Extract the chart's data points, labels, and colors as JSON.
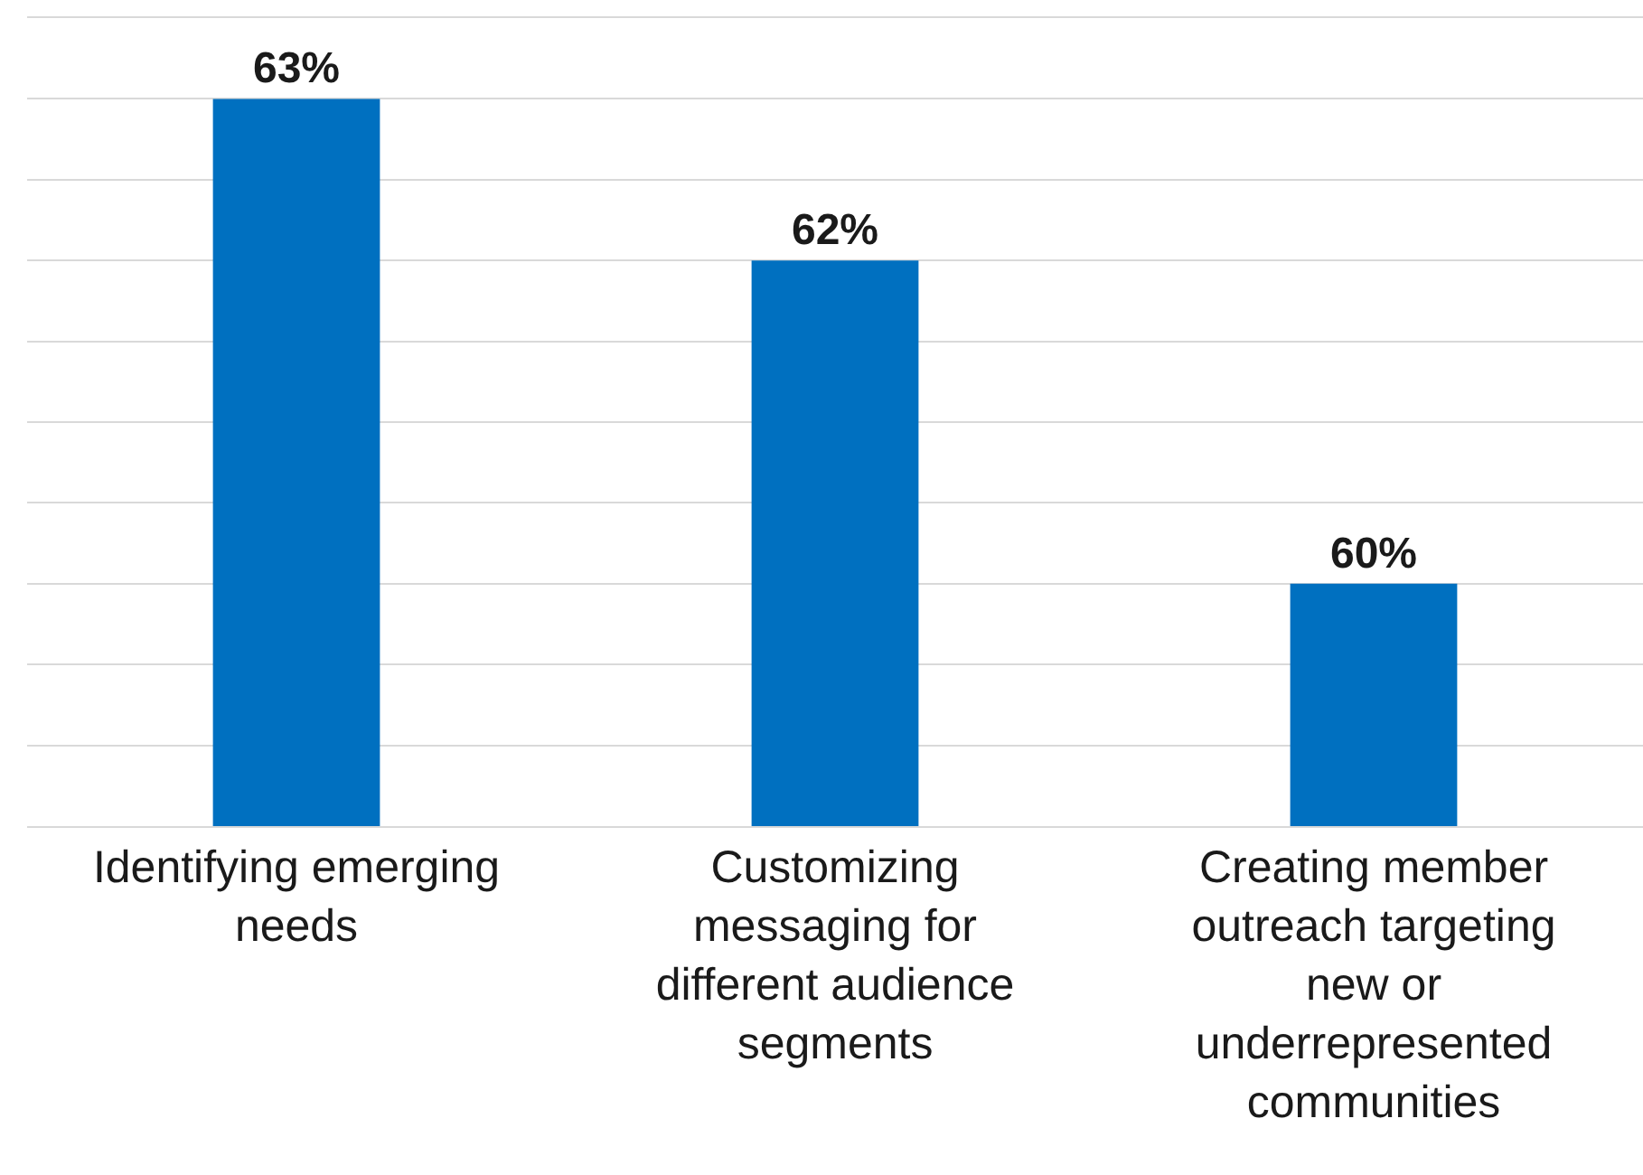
{
  "chart_data": {
    "type": "bar",
    "categories": [
      "Identifying emerging needs",
      "Customizing messaging for different audience segments",
      "Creating member outreach targeting new or underrepresented communities"
    ],
    "values": [
      63,
      62,
      60
    ],
    "color": "#0070c0",
    "value_labels": [
      "63%",
      "62%",
      "60%"
    ],
    "ylim": [
      58.5,
      63.5
    ],
    "yticks": [
      {
        "value": 58.5,
        "label": null
      },
      {
        "value": 59,
        "label": null
      },
      {
        "value": 59.5,
        "label": null
      },
      {
        "value": 60,
        "label": null
      },
      {
        "value": 60.5,
        "label": null
      },
      {
        "value": 61,
        "label": null
      },
      {
        "value": 61.5,
        "label": null
      },
      {
        "value": 62,
        "label": null
      },
      {
        "value": 62.5,
        "label": null
      },
      {
        "value": 63,
        "label": null
      },
      {
        "value": 63.5,
        "label": null
      }
    ],
    "grid": "y",
    "tick_labels": "x"
  }
}
